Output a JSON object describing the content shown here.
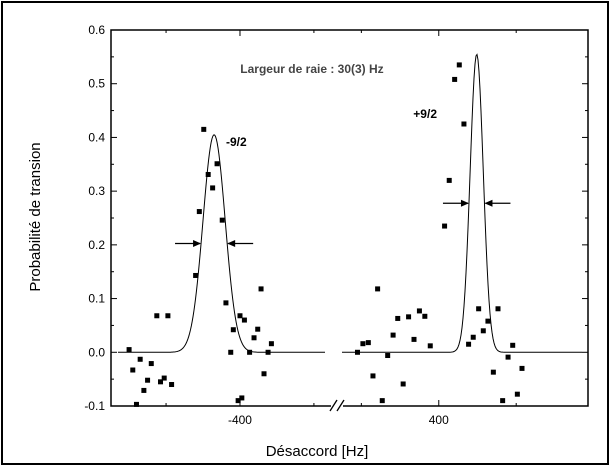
{
  "chart_data": {
    "type": "scatter",
    "xlabel": "Désaccord [Hz]",
    "ylabel": "Probabilité de transion",
    "ylim": [
      -0.1,
      0.6
    ],
    "yticks": [
      "-0.1",
      "0.0",
      "0.1",
      "0.2",
      "0.3",
      "0.4",
      "0.5",
      "0.6"
    ],
    "xticks": [
      "-400",
      "400"
    ],
    "axis_break": true,
    "grid": false,
    "annotations": {
      "linewidth": "Largeur de raie : 30(3) Hz",
      "left_peak": "-9/2",
      "right_peak": "+9/2"
    },
    "left_panel": {
      "xlim": [
        -730,
        -170
      ],
      "fit": {
        "center": -470,
        "amplitude": 0.405,
        "sigma": 30
      },
      "points": [
        [
          -700,
          0.005
        ],
        [
          -690,
          -0.033
        ],
        [
          -680,
          -0.097
        ],
        [
          -670,
          -0.013
        ],
        [
          -660,
          -0.071
        ],
        [
          -650,
          -0.052
        ],
        [
          -640,
          -0.021
        ],
        [
          -625,
          0.068
        ],
        [
          -615,
          -0.055
        ],
        [
          -605,
          -0.048
        ],
        [
          -595,
          0.068
        ],
        [
          -585,
          -0.06
        ],
        [
          -520,
          0.143
        ],
        [
          -510,
          0.262
        ],
        [
          -498,
          0.415
        ],
        [
          -486,
          0.331
        ],
        [
          -474,
          0.306
        ],
        [
          -462,
          0.351
        ],
        [
          -448,
          0.246
        ],
        [
          -438,
          0.092
        ],
        [
          -425,
          0.0
        ],
        [
          -418,
          0.042
        ],
        [
          -405,
          -0.09
        ],
        [
          -400,
          0.068
        ],
        [
          -395,
          -0.085
        ],
        [
          -388,
          0.06
        ],
        [
          -374,
          0.0
        ],
        [
          -362,
          0.027
        ],
        [
          -352,
          0.043
        ],
        [
          -343,
          0.118
        ],
        [
          -335,
          -0.04
        ],
        [
          -324,
          0.0
        ],
        [
          -315,
          0.016
        ]
      ]
    },
    "right_panel": {
      "xlim": [
        150,
        770
      ],
      "fit": {
        "center": 498,
        "amplitude": 0.555,
        "sigma": 17
      },
      "points": [
        [
          190,
          0.0
        ],
        [
          204,
          0.016
        ],
        [
          218,
          0.018
        ],
        [
          230,
          -0.044
        ],
        [
          242,
          0.118
        ],
        [
          254,
          -0.09
        ],
        [
          268,
          -0.006
        ],
        [
          282,
          0.032
        ],
        [
          294,
          0.063
        ],
        [
          308,
          -0.059
        ],
        [
          322,
          0.066
        ],
        [
          336,
          0.024
        ],
        [
          350,
          0.077
        ],
        [
          364,
          0.067
        ],
        [
          378,
          0.012
        ],
        [
          415,
          0.235
        ],
        [
          427,
          0.32
        ],
        [
          441,
          0.508
        ],
        [
          453,
          0.535
        ],
        [
          465,
          0.425
        ],
        [
          477,
          0.015
        ],
        [
          489,
          0.028
        ],
        [
          503,
          0.081
        ],
        [
          515,
          0.04
        ],
        [
          527,
          0.058
        ],
        [
          541,
          -0.037
        ],
        [
          553,
          0.081
        ],
        [
          565,
          -0.09
        ],
        [
          579,
          -0.009
        ],
        [
          591,
          0.013
        ],
        [
          603,
          -0.078
        ],
        [
          615,
          -0.03
        ]
      ]
    }
  }
}
